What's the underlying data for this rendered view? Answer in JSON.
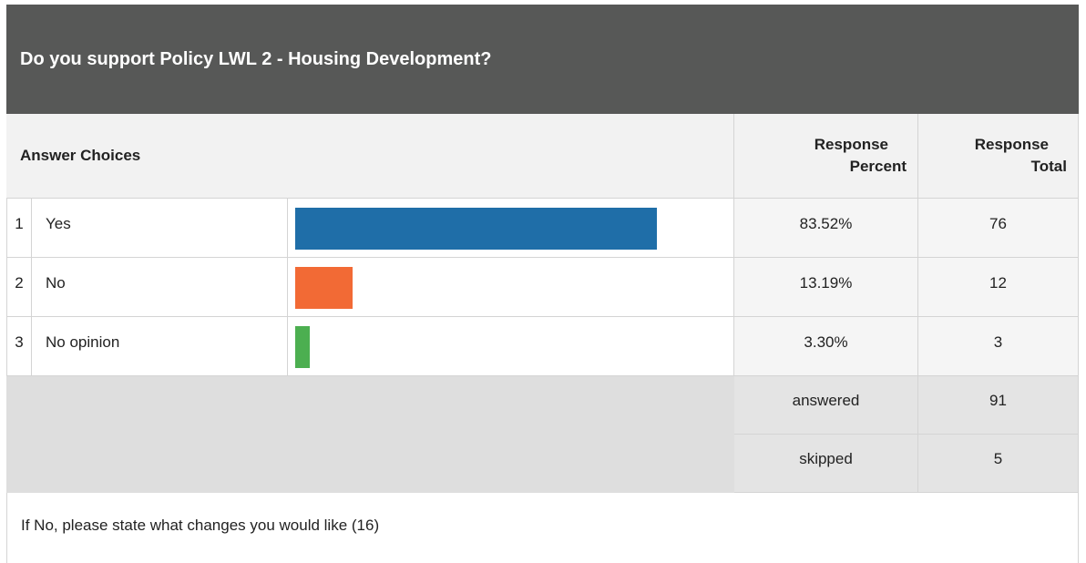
{
  "title": "Do you support Policy LWL 2 - Housing Development?",
  "header": {
    "answer_choices": "Answer Choices",
    "response_percent": [
      "Response",
      "Percent"
    ],
    "response_total": [
      "Response",
      "Total"
    ]
  },
  "rows": [
    {
      "index": 1,
      "label": "Yes",
      "percent": 83.52,
      "percent_label": "83.52%",
      "total": 76,
      "color": "#1f6ea8"
    },
    {
      "index": 2,
      "label": "No",
      "percent": 13.19,
      "percent_label": "13.19%",
      "total": 12,
      "color": "#f26a35"
    },
    {
      "index": 3,
      "label": "No opinion",
      "percent": 3.3,
      "percent_label": "3.30%",
      "total": 3,
      "color": "#4caf50"
    }
  ],
  "summary": [
    {
      "label": "answered",
      "value": 91
    },
    {
      "label": "skipped",
      "value": 5
    }
  ],
  "footer": "If No, please state what changes you would like (16)"
}
